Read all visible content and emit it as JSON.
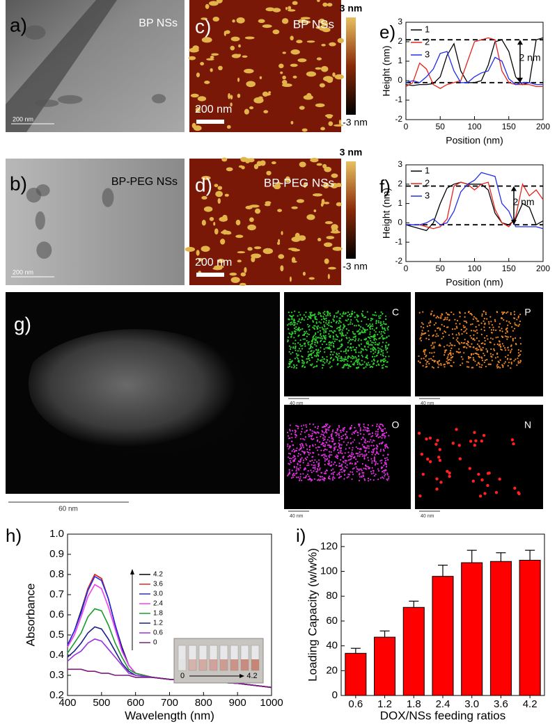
{
  "image_panels": [
    {
      "label": "a)",
      "caption": "BP NSs",
      "scale": "200 nm"
    },
    {
      "label": "c)",
      "caption": "BP NSs",
      "scale": "200 nm"
    },
    {
      "label": "b)",
      "caption": "BP-PEG NSs",
      "scale": "200 nm"
    },
    {
      "label": "d)",
      "caption": "BP-PEG NSs",
      "scale": "200 nm"
    },
    {
      "label": "g)",
      "scale": "60 nm"
    }
  ],
  "colorbars": [
    {
      "top": "3 nm",
      "bottom": "-3 nm"
    },
    {
      "top": "3 nm",
      "bottom": "-3 nm"
    }
  ],
  "maps": [
    {
      "element": "C",
      "scale": "40 nm"
    },
    {
      "element": "P",
      "scale": "40 nm"
    },
    {
      "element": "O",
      "scale": "40 nm"
    },
    {
      "element": "N",
      "scale": "40 nm"
    }
  ],
  "chart_data": [
    {
      "type": "line",
      "label": "e)",
      "x_label": "Position (nm)",
      "y_label": "Height (nm)",
      "x": [
        0,
        10,
        20,
        30,
        40,
        50,
        60,
        70,
        80,
        90,
        100,
        110,
        120,
        130,
        140,
        150,
        160,
        170,
        180,
        190,
        200
      ],
      "series": [
        {
          "name": "1",
          "color": "#000000",
          "values": [
            -0.2,
            -0.25,
            -0.2,
            -0.2,
            -0.15,
            0.2,
            1.3,
            1.9,
            0.5,
            -0.1,
            -0.1,
            0,
            0.8,
            2.0,
            2.1,
            1.5,
            0.2,
            -0.2,
            -0.1,
            2.1,
            2.2
          ]
        },
        {
          "name": "2",
          "color": "#e8221c",
          "values": [
            -0.3,
            -0.1,
            0.9,
            0.6,
            -0.2,
            -0.4,
            -0.2,
            -0.1,
            0,
            1.0,
            2.0,
            2.1,
            2.2,
            2.1,
            0.5,
            -0.1,
            -0.2,
            -0.2,
            -0.2,
            -0.3,
            -0.3
          ]
        },
        {
          "name": "3",
          "color": "#1f2ee8",
          "values": [
            -0.1,
            0,
            -0.1,
            0.2,
            0.6,
            1.4,
            1.5,
            0.5,
            -0.1,
            -0.1,
            0.2,
            0.4,
            0.5,
            1.2,
            1.0,
            0.1,
            -0.2,
            -0.1,
            -0.1,
            -0.2,
            -0.2
          ]
        }
      ],
      "reference_lines": [
        2.1,
        -0.1
      ],
      "annotation": "2 nm",
      "xlim": [
        0,
        200
      ],
      "xticks": [
        0,
        50,
        100,
        150,
        200
      ],
      "ylim": [
        -2,
        3
      ],
      "yticks": [
        -2,
        -1,
        0,
        1,
        2,
        3
      ]
    },
    {
      "type": "line",
      "label": "f)",
      "x_label": "Position (nm)",
      "y_label": "Height (nm)",
      "x": [
        0,
        10,
        20,
        30,
        40,
        50,
        60,
        70,
        80,
        90,
        100,
        110,
        120,
        130,
        140,
        150,
        160,
        170,
        180,
        190,
        200
      ],
      "series": [
        {
          "name": "1",
          "color": "#000000",
          "values": [
            -0.1,
            -0.2,
            -0.3,
            -0.4,
            0,
            1.0,
            1.8,
            2.0,
            2.1,
            2.0,
            2.0,
            2.0,
            1.7,
            0.5,
            0,
            -0.1,
            0.2,
            1.0,
            0.8,
            -0.1,
            0.1
          ]
        },
        {
          "name": "2",
          "color": "#e8221c",
          "values": [
            -0.1,
            -0.1,
            -0.1,
            -0.2,
            -0.3,
            -0.2,
            0.2,
            1.9,
            2.1,
            2.0,
            1.7,
            2.0,
            2.1,
            0.7,
            0,
            -0.2,
            0.3,
            2.0,
            1.4,
            1.7,
            1.2
          ]
        },
        {
          "name": "3",
          "color": "#1f2ee8",
          "values": [
            -0.1,
            -0.1,
            -0.1,
            0,
            0.2,
            -0.1,
            0,
            0.6,
            1.6,
            2.0,
            2.2,
            2.6,
            2.5,
            2.4,
            1.0,
            0.6,
            -0.2,
            -0.2,
            -0.2,
            -0.2,
            -0.3
          ]
        }
      ],
      "reference_lines": [
        1.9,
        -0.1
      ],
      "annotation": "2 nm",
      "xlim": [
        0,
        200
      ],
      "xticks": [
        0,
        50,
        100,
        150,
        200
      ],
      "ylim": [
        -2,
        3
      ],
      "yticks": [
        -2,
        -1,
        0,
        1,
        2,
        3
      ]
    },
    {
      "type": "line",
      "label": "h)",
      "x_label": "Wavelength (nm)",
      "y_label": "Absorbance",
      "x": [
        400,
        420,
        440,
        460,
        480,
        500,
        520,
        540,
        560,
        580,
        600,
        650,
        700,
        800,
        900,
        1000
      ],
      "series": [
        {
          "name": "4.2",
          "color": "#000000",
          "values": [
            0.45,
            0.52,
            0.62,
            0.73,
            0.8,
            0.78,
            0.68,
            0.55,
            0.44,
            0.35,
            0.31,
            0.29,
            0.28,
            0.27,
            0.26,
            0.24
          ]
        },
        {
          "name": "3.6",
          "color": "#e8221c",
          "values": [
            0.45,
            0.52,
            0.61,
            0.73,
            0.8,
            0.78,
            0.68,
            0.55,
            0.43,
            0.35,
            0.31,
            0.29,
            0.28,
            0.27,
            0.26,
            0.24
          ]
        },
        {
          "name": "3.0",
          "color": "#1f2ee8",
          "values": [
            0.45,
            0.52,
            0.61,
            0.72,
            0.79,
            0.77,
            0.68,
            0.55,
            0.43,
            0.35,
            0.31,
            0.29,
            0.28,
            0.27,
            0.26,
            0.24
          ]
        },
        {
          "name": "2.4",
          "color": "#f040f0",
          "values": [
            0.44,
            0.5,
            0.59,
            0.69,
            0.75,
            0.73,
            0.64,
            0.53,
            0.42,
            0.35,
            0.31,
            0.29,
            0.28,
            0.27,
            0.26,
            0.24
          ]
        },
        {
          "name": "1.8",
          "color": "#1a9a2a",
          "values": [
            0.41,
            0.46,
            0.51,
            0.59,
            0.63,
            0.62,
            0.55,
            0.46,
            0.39,
            0.33,
            0.31,
            0.29,
            0.28,
            0.27,
            0.26,
            0.24
          ]
        },
        {
          "name": "1.2",
          "color": "#1c1c8a",
          "values": [
            0.39,
            0.42,
            0.46,
            0.51,
            0.54,
            0.53,
            0.48,
            0.42,
            0.36,
            0.32,
            0.3,
            0.29,
            0.28,
            0.27,
            0.26,
            0.24
          ]
        },
        {
          "name": "0.6",
          "color": "#9a30e0",
          "values": [
            0.37,
            0.4,
            0.42,
            0.46,
            0.48,
            0.47,
            0.43,
            0.39,
            0.35,
            0.31,
            0.3,
            0.29,
            0.28,
            0.27,
            0.26,
            0.24
          ]
        },
        {
          "name": "0",
          "color": "#7a1a7a",
          "values": [
            0.33,
            0.33,
            0.33,
            0.32,
            0.32,
            0.31,
            0.31,
            0.3,
            0.3,
            0.3,
            0.29,
            0.29,
            0.28,
            0.27,
            0.26,
            0.24
          ]
        }
      ],
      "inset_labels": [
        "0",
        "4.2"
      ],
      "xlim": [
        400,
        1000
      ],
      "xticks": [
        400,
        500,
        600,
        700,
        800,
        900,
        1000
      ],
      "ylim": [
        0.2,
        1
      ],
      "yticks": [
        0.2,
        0.3,
        0.4,
        0.5,
        0.6,
        0.7,
        0.8,
        0.9,
        {
          "value": 1,
          "label": "1.0"
        }
      ]
    },
    {
      "type": "bar",
      "label": "i)",
      "x_label": "DOX/NSs feeding ratios",
      "y_label": "Loading Capacity (w/w%)",
      "categories": [
        "0.6",
        "1.2",
        "1.8",
        "2.4",
        "3.0",
        "3.6",
        "4.2"
      ],
      "values": [
        34,
        47,
        71,
        96,
        107,
        108,
        109
      ],
      "errors": [
        4,
        5,
        5,
        9,
        10,
        7,
        8
      ],
      "color": "#ff0000",
      "ylim": [
        0,
        130
      ],
      "yticks": [
        0,
        20,
        40,
        60,
        80,
        100,
        120
      ]
    }
  ]
}
